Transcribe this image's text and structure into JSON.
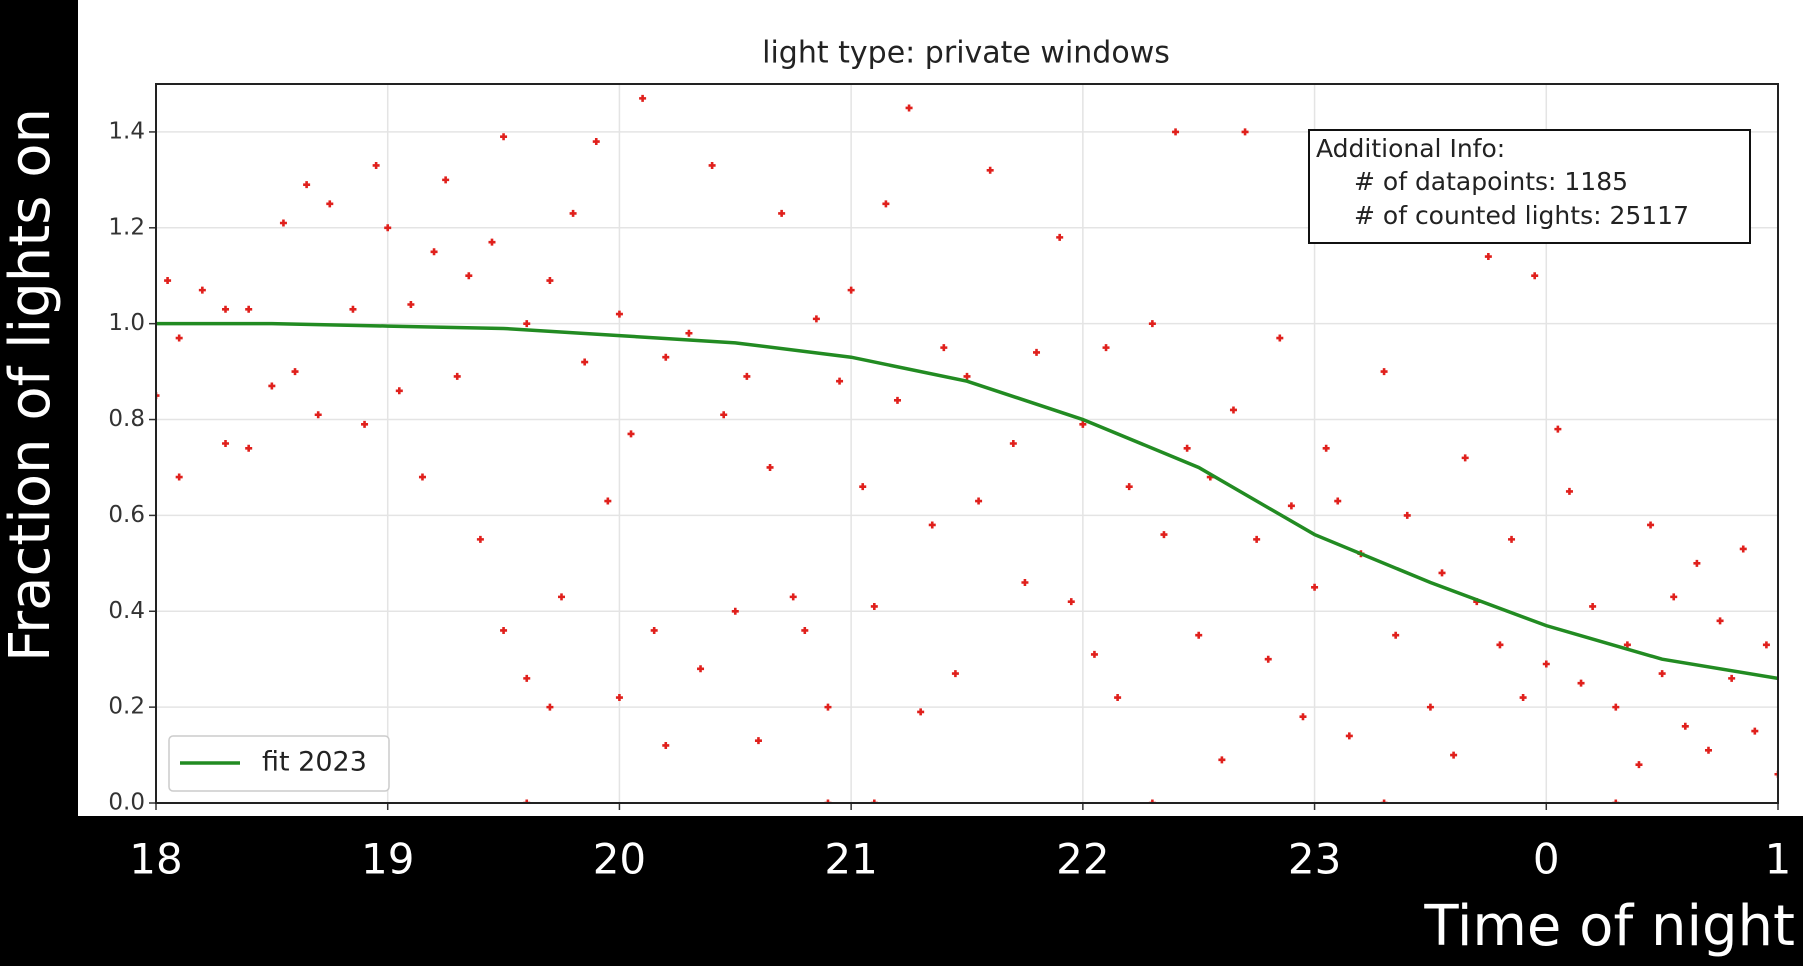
{
  "chart_data": {
    "type": "scatter",
    "title": "light type: private windows",
    "x_label": "Time of night",
    "y_label": "Fraction of lights on",
    "xlim": [
      18,
      25
    ],
    "xticks": [
      18,
      19,
      20,
      21,
      22,
      23,
      {
        "value": 24,
        "label": "0"
      },
      {
        "value": 25,
        "label": "1"
      }
    ],
    "ylim": [
      0,
      1.5
    ],
    "yticks": [
      {
        "value": 0,
        "label": "0.0"
      },
      0.2,
      0.4,
      0.6,
      0.8,
      {
        "value": 1,
        "label": "1.0"
      },
      1.2,
      1.4
    ],
    "grid": true,
    "legend": "lower left",
    "info": {
      "title": "Additional Info:",
      "lines": [
        "# of datapoints: 1185",
        "# of counted lights: 25117"
      ]
    },
    "points": {
      "color": "#e0201c",
      "x": [
        18.0,
        18.05,
        18.1,
        18.1,
        18.2,
        18.3,
        18.3,
        18.4,
        18.4,
        18.5,
        18.55,
        18.6,
        18.65,
        18.7,
        18.75,
        18.85,
        18.9,
        18.95,
        19.0,
        19.05,
        19.1,
        19.15,
        19.2,
        19.25,
        19.3,
        19.35,
        19.4,
        19.45,
        19.5,
        19.5,
        19.6,
        19.6,
        19.7,
        19.7,
        19.75,
        19.8,
        19.85,
        19.9,
        19.95,
        20.0,
        20.0,
        20.05,
        20.1,
        20.15,
        20.2,
        20.2,
        20.3,
        20.35,
        20.4,
        20.45,
        20.5,
        20.55,
        20.6,
        20.65,
        20.7,
        20.75,
        20.8,
        20.85,
        20.9,
        20.95,
        21.0,
        21.05,
        21.1,
        21.15,
        21.2,
        21.25,
        21.3,
        21.35,
        21.4,
        21.45,
        21.5,
        21.55,
        21.6,
        21.7,
        21.75,
        21.8,
        21.9,
        21.95,
        22.0,
        22.05,
        22.1,
        22.15,
        22.2,
        22.3,
        22.35,
        22.4,
        22.45,
        22.5,
        22.55,
        22.6,
        22.65,
        22.7,
        22.75,
        22.8,
        22.85,
        22.9,
        22.95,
        23.0,
        23.05,
        23.1,
        23.15,
        23.2,
        23.3,
        23.35,
        23.4,
        23.5,
        23.55,
        23.6,
        23.65,
        23.7,
        23.75,
        23.8,
        23.85,
        23.9,
        23.95,
        24.0,
        24.05,
        24.1,
        24.15,
        24.2,
        24.3,
        24.35,
        24.4,
        24.45,
        24.5,
        24.55,
        24.6,
        24.65,
        24.7,
        24.75,
        24.8,
        24.85,
        24.9,
        24.95,
        25.0,
        19.6,
        20.9,
        21.1,
        22.3,
        23.3,
        24.3
      ],
      "y": [
        0.85,
        1.09,
        0.68,
        0.97,
        1.07,
        0.75,
        1.03,
        0.74,
        1.03,
        0.87,
        1.21,
        0.9,
        1.29,
        0.81,
        1.25,
        1.03,
        0.79,
        1.33,
        1.2,
        0.86,
        1.04,
        0.68,
        1.15,
        1.3,
        0.89,
        1.1,
        0.55,
        1.17,
        0.36,
        1.39,
        0.26,
        1.0,
        0.2,
        1.09,
        0.43,
        1.23,
        0.92,
        1.38,
        0.63,
        0.22,
        1.02,
        0.77,
        1.47,
        0.36,
        0.12,
        0.93,
        0.98,
        0.28,
        1.33,
        0.81,
        0.4,
        0.89,
        0.13,
        0.7,
        1.23,
        0.43,
        0.36,
        1.01,
        0.2,
        0.88,
        1.07,
        0.66,
        0.41,
        1.25,
        0.84,
        1.45,
        0.19,
        0.58,
        0.95,
        0.27,
        0.89,
        0.63,
        1.32,
        0.75,
        0.46,
        0.94,
        1.18,
        0.42,
        0.79,
        0.31,
        0.95,
        0.22,
        0.66,
        1.0,
        0.56,
        1.4,
        0.74,
        0.35,
        0.68,
        0.09,
        0.82,
        1.4,
        0.55,
        0.3,
        0.97,
        0.62,
        0.18,
        0.45,
        0.74,
        0.63,
        0.14,
        0.52,
        0.9,
        0.35,
        0.6,
        0.2,
        0.48,
        0.1,
        0.72,
        0.42,
        1.14,
        0.33,
        0.55,
        0.22,
        1.1,
        0.29,
        0.78,
        0.65,
        0.25,
        0.41,
        0.2,
        0.33,
        0.08,
        0.58,
        0.27,
        0.43,
        0.16,
        0.5,
        0.11,
        0.38,
        0.26,
        0.53,
        0.15,
        0.33,
        0.06,
        0,
        0,
        0,
        0,
        0,
        0
      ]
    },
    "fit": {
      "name": "fit 2023",
      "color": "#228b22",
      "x": [
        18,
        18.5,
        19,
        19.5,
        20,
        20.5,
        21,
        21.5,
        22,
        22.5,
        23,
        23.5,
        24,
        24.5,
        25
      ],
      "y": [
        1.0,
        1.0,
        0.995,
        0.99,
        0.975,
        0.96,
        0.93,
        0.88,
        0.8,
        0.7,
        0.56,
        0.46,
        0.37,
        0.3,
        0.26
      ]
    }
  }
}
